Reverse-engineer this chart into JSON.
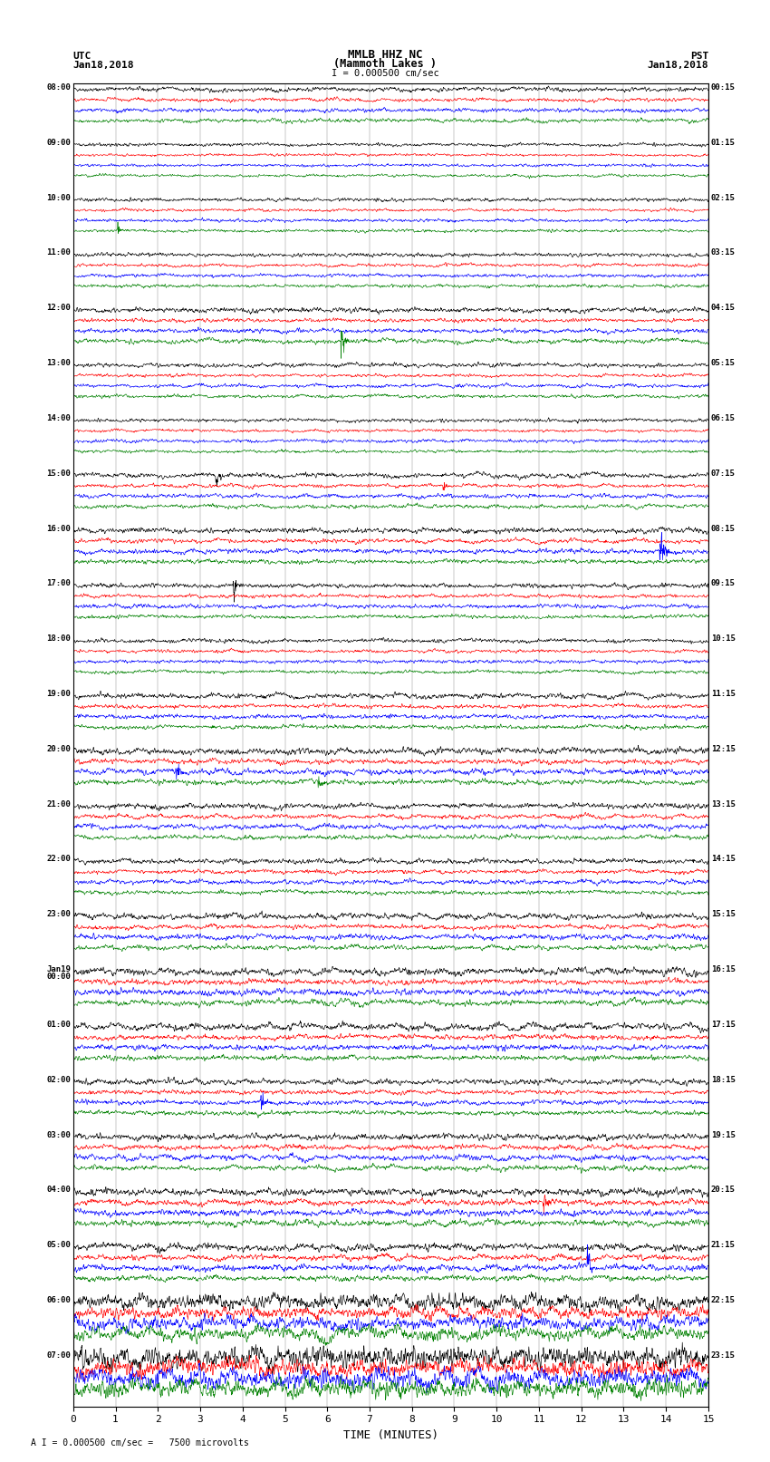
{
  "title_line1": "MMLB HHZ NC",
  "title_line2": "(Mammoth Lakes )",
  "title_line3": "I = 0.000500 cm/sec",
  "left_header_line1": "UTC",
  "left_header_line2": "Jan18,2018",
  "right_header_line1": "PST",
  "right_header_line2": "Jan18,2018",
  "footer": "A I = 0.000500 cm/sec =   7500 microvolts",
  "xlabel": "TIME (MINUTES)",
  "left_times": [
    "08:00",
    "09:00",
    "10:00",
    "11:00",
    "12:00",
    "13:00",
    "14:00",
    "15:00",
    "16:00",
    "17:00",
    "18:00",
    "19:00",
    "20:00",
    "21:00",
    "22:00",
    "23:00",
    "Jan19\n00:00",
    "01:00",
    "02:00",
    "03:00",
    "04:00",
    "05:00",
    "06:00",
    "07:00"
  ],
  "right_times": [
    "00:15",
    "01:15",
    "02:15",
    "03:15",
    "04:15",
    "05:15",
    "06:15",
    "07:15",
    "08:15",
    "09:15",
    "10:15",
    "11:15",
    "12:15",
    "13:15",
    "14:15",
    "15:15",
    "16:15",
    "17:15",
    "18:15",
    "19:15",
    "20:15",
    "21:15",
    "22:15",
    "23:15"
  ],
  "trace_colors": [
    "black",
    "red",
    "blue",
    "green"
  ],
  "n_groups": 24,
  "traces_per_group": 4,
  "x_min": 0,
  "x_max": 15,
  "x_ticks": [
    0,
    1,
    2,
    3,
    4,
    5,
    6,
    7,
    8,
    9,
    10,
    11,
    12,
    13,
    14,
    15
  ],
  "bg_color": "white",
  "fig_width": 8.5,
  "fig_height": 16.13,
  "dpi": 100,
  "seed": 42,
  "amplitude_variations": [
    0.25,
    0.18,
    0.2,
    0.22,
    0.28,
    0.22,
    0.2,
    0.25,
    0.3,
    0.25,
    0.22,
    0.28,
    0.35,
    0.3,
    0.28,
    0.32,
    0.38,
    0.35,
    0.3,
    0.35,
    0.4,
    0.38,
    0.8,
    1.2
  ]
}
